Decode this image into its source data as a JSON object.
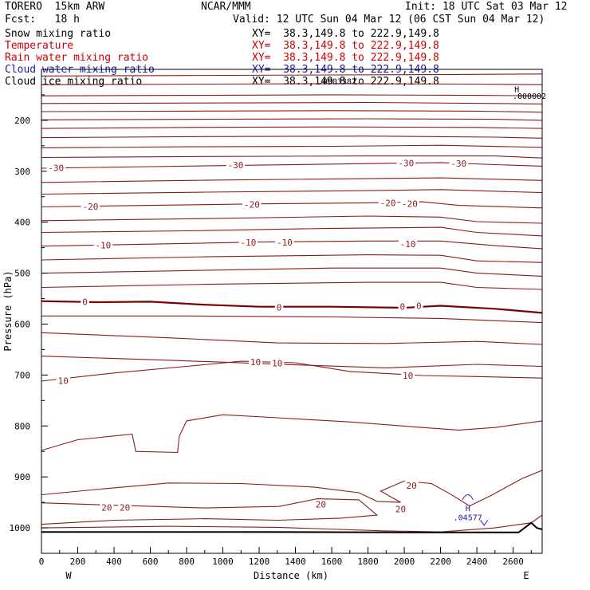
{
  "header": {
    "model": "TORERO  15km ARW",
    "center": "NCAR/MMM",
    "init": "Init: 18 UTC Sat 03 Mar 12",
    "fcst": "Fcst:   18 h",
    "valid": "Valid: 12 UTC Sun 04 Mar 12 (06 CST Sun 04 Mar 12)",
    "fields": [
      {
        "label": "Snow mixing ratio",
        "xy": "XY=  38.3,149.8 to 222.9,149.8",
        "color": "#000000"
      },
      {
        "label": "Temperature",
        "xy": "XY=  38.3,149.8 to 222.9,149.8",
        "color": "#cc0000"
      },
      {
        "label": "Rain water mixing ratio",
        "xy": "XY=  38.3,149.8 to 222.9,149.8",
        "color": "#cc0000"
      },
      {
        "label": "Cloud water mixing ratio",
        "xy": "XY=  38.3,149.8 to 222.9,149.8",
        "color": "#1a1aa0"
      },
      {
        "label": "Cloud ice mixing ratio",
        "xy": "XY=  38.3,149.8 to 222.9,149.8",
        "color": "#000000"
      }
    ]
  },
  "chart_data": {
    "type": "line",
    "title": "",
    "xlabel": "Distance (km)",
    "ylabel": "Pressure (hPa)",
    "xlim": [
      0,
      2760
    ],
    "ylim": [
      1050,
      100
    ],
    "x_ticks": [
      0,
      200,
      400,
      600,
      800,
      1000,
      1200,
      1400,
      1600,
      1800,
      2000,
      2200,
      2400,
      2600
    ],
    "y_ticks": [
      200,
      300,
      400,
      500,
      600,
      700,
      800,
      900,
      1000
    ],
    "x_end_labels": {
      "left": "W",
      "right": "E"
    },
    "colors": {
      "isotherm": "#8b1a1a",
      "freezing": "#7a0000",
      "ground": "#000000",
      "cloud_water": "#2222cc"
    },
    "isotherms": [
      {
        "label": "",
        "points": [
          [
            0,
            113
          ],
          [
            800,
            112
          ],
          [
            1600,
            111
          ],
          [
            2300,
            110
          ],
          [
            2760,
            109
          ]
        ]
      },
      {
        "label": "",
        "points": [
          [
            0,
            130
          ],
          [
            900,
            129
          ],
          [
            1700,
            128
          ],
          [
            2400,
            129
          ],
          [
            2760,
            130
          ]
        ]
      },
      {
        "label": "",
        "points": [
          [
            0,
            152
          ],
          [
            800,
            151
          ],
          [
            1600,
            150
          ],
          [
            2400,
            151
          ],
          [
            2760,
            152
          ]
        ]
      },
      {
        "label": "",
        "points": [
          [
            0,
            167
          ],
          [
            900,
            166
          ],
          [
            1800,
            165
          ],
          [
            2500,
            167
          ],
          [
            2760,
            168
          ]
        ]
      },
      {
        "label": "",
        "points": [
          [
            0,
            183
          ],
          [
            800,
            182
          ],
          [
            1600,
            181
          ],
          [
            2400,
            182
          ],
          [
            2760,
            184
          ]
        ]
      },
      {
        "label": "",
        "points": [
          [
            0,
            199
          ],
          [
            900,
            198
          ],
          [
            1800,
            197
          ],
          [
            2500,
            198
          ],
          [
            2760,
            200
          ]
        ]
      },
      {
        "label": "",
        "points": [
          [
            0,
            216
          ],
          [
            800,
            214
          ],
          [
            1600,
            213
          ],
          [
            2400,
            214
          ],
          [
            2760,
            216
          ]
        ]
      },
      {
        "label": "",
        "points": [
          [
            0,
            234
          ],
          [
            900,
            232
          ],
          [
            1800,
            231
          ],
          [
            2500,
            233
          ],
          [
            2760,
            235
          ]
        ]
      },
      {
        "label": "",
        "points": [
          [
            0,
            254
          ],
          [
            800,
            252
          ],
          [
            1600,
            251
          ],
          [
            2200,
            249
          ],
          [
            2760,
            253
          ]
        ]
      },
      {
        "label": "",
        "points": [
          [
            0,
            273
          ],
          [
            900,
            271
          ],
          [
            1800,
            270
          ],
          [
            2500,
            270
          ],
          [
            2760,
            274
          ]
        ]
      },
      {
        "label": "-30",
        "points": [
          [
            0,
            294
          ],
          [
            600,
            291
          ],
          [
            1200,
            288
          ],
          [
            1800,
            285
          ],
          [
            2200,
            283
          ],
          [
            2500,
            287
          ],
          [
            2760,
            290
          ]
        ]
      },
      {
        "label": "",
        "points": [
          [
            0,
            322
          ],
          [
            800,
            318
          ],
          [
            1600,
            315
          ],
          [
            2200,
            313
          ],
          [
            2760,
            318
          ]
        ]
      },
      {
        "label": "",
        "points": [
          [
            0,
            345
          ],
          [
            900,
            341
          ],
          [
            1800,
            338
          ],
          [
            2200,
            336
          ],
          [
            2760,
            342
          ]
        ]
      },
      {
        "label": "-20",
        "points": [
          [
            0,
            370
          ],
          [
            600,
            367
          ],
          [
            1200,
            364
          ],
          [
            1800,
            362
          ],
          [
            2100,
            360
          ],
          [
            2300,
            367
          ],
          [
            2760,
            372
          ]
        ]
      },
      {
        "label": "",
        "points": [
          [
            0,
            397
          ],
          [
            900,
            393
          ],
          [
            1800,
            388
          ],
          [
            2200,
            390
          ],
          [
            2400,
            399
          ],
          [
            2760,
            402
          ]
        ]
      },
      {
        "label": "",
        "points": [
          [
            0,
            420
          ],
          [
            800,
            417
          ],
          [
            1600,
            412
          ],
          [
            2200,
            410
          ],
          [
            2400,
            420
          ],
          [
            2760,
            427
          ]
        ]
      },
      {
        "label": "-10",
        "points": [
          [
            0,
            447
          ],
          [
            600,
            443
          ],
          [
            1200,
            439
          ],
          [
            1800,
            437
          ],
          [
            2200,
            437
          ],
          [
            2500,
            446
          ],
          [
            2760,
            452
          ]
        ]
      },
      {
        "label": "",
        "points": [
          [
            0,
            474
          ],
          [
            900,
            468
          ],
          [
            1800,
            464
          ],
          [
            2200,
            465
          ],
          [
            2400,
            476
          ],
          [
            2760,
            479
          ]
        ]
      },
      {
        "label": "",
        "points": [
          [
            0,
            500
          ],
          [
            800,
            495
          ],
          [
            1600,
            490
          ],
          [
            2200,
            490
          ],
          [
            2400,
            500
          ],
          [
            2760,
            506
          ]
        ]
      },
      {
        "label": "",
        "points": [
          [
            0,
            528
          ],
          [
            900,
            522
          ],
          [
            1800,
            518
          ],
          [
            2200,
            518
          ],
          [
            2400,
            528
          ],
          [
            2760,
            532
          ]
        ]
      },
      {
        "label": "0",
        "bold": true,
        "points": [
          [
            0,
            555
          ],
          [
            300,
            557
          ],
          [
            600,
            556
          ],
          [
            900,
            562
          ],
          [
            1200,
            566
          ],
          [
            1600,
            566
          ],
          [
            2000,
            568
          ],
          [
            2200,
            564
          ],
          [
            2500,
            570
          ],
          [
            2760,
            578
          ]
        ]
      },
      {
        "label": "",
        "points": [
          [
            0,
            584
          ],
          [
            800,
            584
          ],
          [
            1600,
            586
          ],
          [
            2200,
            589
          ],
          [
            2760,
            597
          ]
        ]
      },
      {
        "label": "",
        "points": [
          [
            0,
            617
          ],
          [
            700,
            627
          ],
          [
            1300,
            637
          ],
          [
            1900,
            638
          ],
          [
            2400,
            634
          ],
          [
            2760,
            640
          ]
        ]
      },
      {
        "label": "",
        "points": [
          [
            0,
            663
          ],
          [
            700,
            671
          ],
          [
            1400,
            680
          ],
          [
            1900,
            686
          ],
          [
            2400,
            679
          ],
          [
            2760,
            683
          ]
        ]
      },
      {
        "label": "10",
        "points": [
          [
            0,
            712
          ],
          [
            400,
            696
          ],
          [
            800,
            683
          ],
          [
            1100,
            673
          ],
          [
            1400,
            676
          ],
          [
            1700,
            693
          ],
          [
            2100,
            701
          ],
          [
            2400,
            703
          ],
          [
            2760,
            706
          ]
        ]
      },
      {
        "label": "",
        "points": [
          [
            0,
            848
          ],
          [
            200,
            827
          ],
          [
            500,
            816
          ],
          [
            520,
            850
          ],
          [
            750,
            852
          ],
          [
            760,
            820
          ],
          [
            800,
            790
          ],
          [
            1000,
            778
          ],
          [
            1300,
            784
          ],
          [
            1700,
            792
          ],
          [
            2100,
            803
          ],
          [
            2300,
            808
          ],
          [
            2500,
            803
          ],
          [
            2760,
            790
          ]
        ]
      },
      {
        "label": "",
        "points": [
          [
            0,
            935
          ],
          [
            350,
            923
          ],
          [
            700,
            912
          ],
          [
            1100,
            913
          ],
          [
            1500,
            920
          ],
          [
            1750,
            931
          ],
          [
            1850,
            948
          ],
          [
            1980,
            950
          ],
          [
            1870,
            928
          ],
          [
            2000,
            908
          ],
          [
            2150,
            913
          ],
          [
            2250,
            933
          ],
          [
            2360,
            957
          ],
          [
            2480,
            936
          ],
          [
            2650,
            903
          ],
          [
            2760,
            887
          ]
        ]
      },
      {
        "label": "20",
        "points": [
          [
            0,
            993
          ],
          [
            400,
            985
          ],
          [
            900,
            982
          ],
          [
            1300,
            985
          ],
          [
            1650,
            981
          ],
          [
            1850,
            975
          ],
          [
            1750,
            945
          ],
          [
            1520,
            943
          ],
          [
            1310,
            958
          ],
          [
            900,
            961
          ],
          [
            350,
            955
          ],
          [
            0,
            951
          ]
        ]
      },
      {
        "label": "",
        "points": [
          [
            0,
            1000
          ],
          [
            700,
            997
          ],
          [
            1300,
            999
          ],
          [
            1900,
            1006
          ],
          [
            2200,
            1008
          ],
          [
            2500,
            1000
          ],
          [
            2700,
            990
          ],
          [
            2760,
            975
          ]
        ]
      }
    ],
    "ground": {
      "points": [
        [
          0,
          1008
        ],
        [
          1100,
          1008
        ],
        [
          2200,
          1009
        ],
        [
          2630,
          1009
        ],
        [
          2700,
          990
        ],
        [
          2730,
          1000
        ],
        [
          2760,
          1003
        ]
      ]
    },
    "inline_labels": [
      {
        "text": "-30",
        "x": 80,
        "p": 293
      },
      {
        "text": "-30",
        "x": 1070,
        "p": 288
      },
      {
        "text": "-30",
        "x": 2010,
        "p": 284
      },
      {
        "text": "-30",
        "x": 2300,
        "p": 285
      },
      {
        "text": "-20",
        "x": 270,
        "p": 369
      },
      {
        "text": "-20",
        "x": 1160,
        "p": 365
      },
      {
        "text": "-20",
        "x": 1910,
        "p": 362
      },
      {
        "text": "-20",
        "x": 2030,
        "p": 364
      },
      {
        "text": "-10",
        "x": 340,
        "p": 445
      },
      {
        "text": "-10",
        "x": 1140,
        "p": 440
      },
      {
        "text": "-10",
        "x": 1340,
        "p": 440
      },
      {
        "text": "-10",
        "x": 2020,
        "p": 443
      },
      {
        "text": "0",
        "x": 240,
        "p": 556
      },
      {
        "text": "0",
        "x": 1310,
        "p": 567
      },
      {
        "text": "0",
        "x": 1990,
        "p": 566
      },
      {
        "text": "0",
        "x": 2080,
        "p": 564
      },
      {
        "text": "10",
        "x": 120,
        "p": 711
      },
      {
        "text": "10",
        "x": 1180,
        "p": 674
      },
      {
        "text": "10",
        "x": 1300,
        "p": 677
      },
      {
        "text": "10",
        "x": 2020,
        "p": 701
      },
      {
        "text": "20",
        "x": 2040,
        "p": 917
      },
      {
        "text": "20",
        "x": 360,
        "p": 960
      },
      {
        "text": "20",
        "x": 460,
        "p": 960
      },
      {
        "text": "20",
        "x": 1540,
        "p": 954
      },
      {
        "text": "20",
        "x": 1980,
        "p": 963
      }
    ],
    "extrema": [
      {
        "text": "H",
        "x": 2620,
        "p": 138,
        "color": "#000000"
      },
      {
        "text": ".000002",
        "x": 2690,
        "p": 152,
        "color": "#000000"
      },
      {
        "text": ".0003382",
        "x": 1630,
        "p": 123,
        "color": "#000000"
      },
      {
        "text": "H",
        "x": 2350,
        "p": 961,
        "color": "#1a1aa0"
      },
      {
        "text": ".04577",
        "x": 2350,
        "p": 979,
        "color": "#1a1aa0"
      }
    ]
  }
}
